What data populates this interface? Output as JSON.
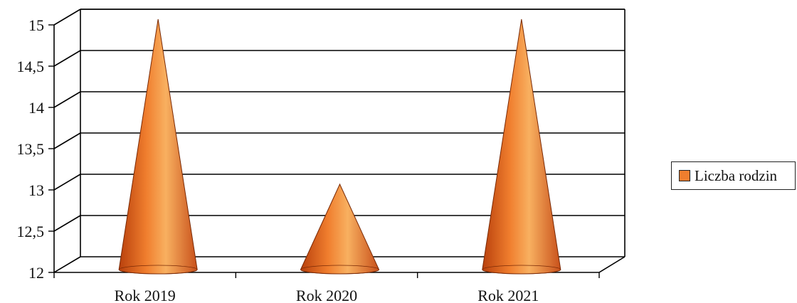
{
  "chart_data": {
    "type": "bar",
    "bar_shape": "cone",
    "categories": [
      "Rok 2019",
      "Rok 2020",
      "Rok 2021"
    ],
    "series": [
      {
        "name": "Liczba rodzin",
        "values": [
          15,
          13,
          15
        ]
      }
    ],
    "yticks": [
      "12",
      "12,5",
      "13",
      "13,5",
      "14",
      "14,5",
      "15"
    ],
    "ylim": [
      12,
      15
    ],
    "grid": true,
    "legend_position": "right",
    "colors": {
      "cone_light": "#f6a04a",
      "cone_mid": "#f07e2e",
      "cone_dark": "#b8400c",
      "grid": "#000000"
    }
  }
}
